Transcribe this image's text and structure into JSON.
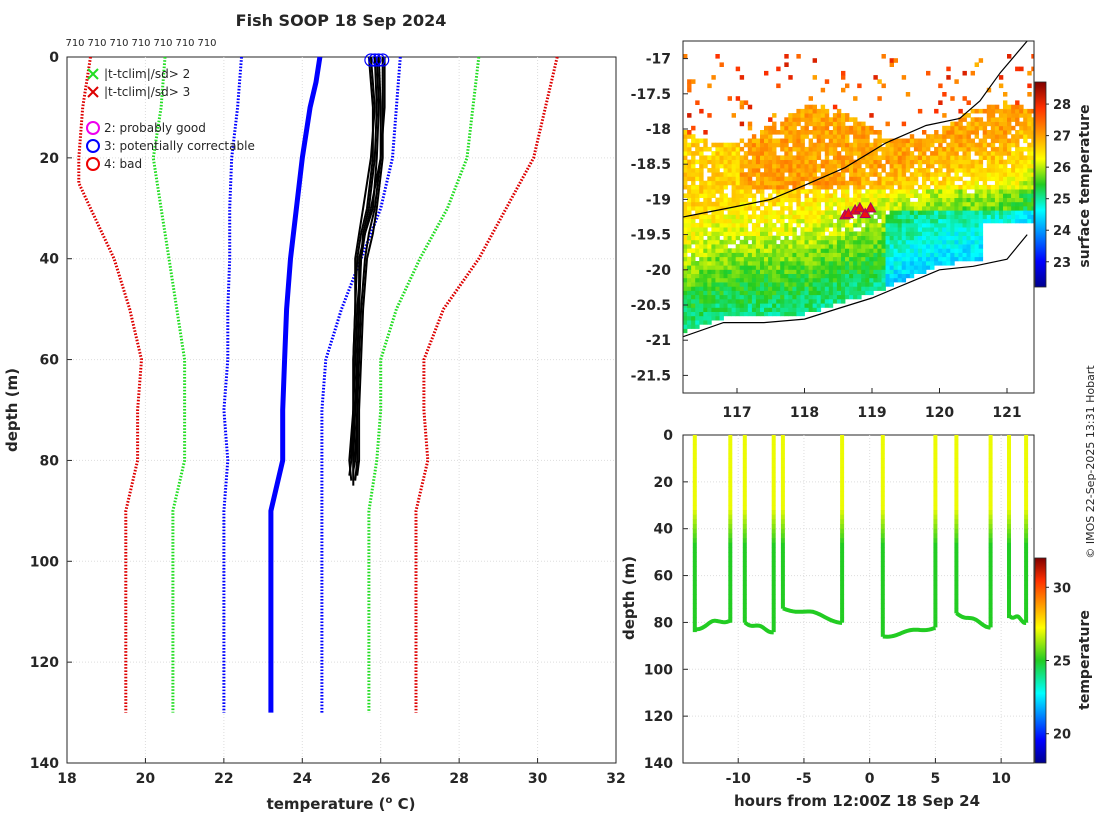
{
  "title": "Fish SOOP 18 Sep 2024",
  "credit": "© IMOS 22-Sep-2025 13:31 Hobart",
  "colors": {
    "clim_mean": "#0000ff",
    "clim_2sd": "#22dd22",
    "clim_3sd": "#dd0000",
    "profile": "#000000",
    "magenta": "#ee00ee",
    "flag_blue": "#0000ff",
    "flag_red": "#ee0000"
  },
  "chart_data": [
    {
      "id": "profiles",
      "type": "line",
      "xlabel": "temperature (",
      "xlabel_sup": "o",
      "xlabel_end": " C)",
      "ylabel": "depth (m)",
      "xlim": [
        18,
        32
      ],
      "ylim": [
        0,
        140
      ],
      "xticks": [
        "18",
        "20",
        "22",
        "24",
        "26",
        "28",
        "30",
        "32"
      ],
      "yticks": [
        "0",
        "20",
        "40",
        "60",
        "80",
        "100",
        "120",
        "140"
      ],
      "top_labels": [
        "710",
        "710",
        "710",
        "710",
        "710",
        "710",
        "710"
      ],
      "legend": [
        {
          "marker": "x",
          "color": "#22dd22",
          "label": "|t-tclim|/sd> 2"
        },
        {
          "marker": "x",
          "color": "#dd0000",
          "label": "|t-tclim|/sd> 3"
        },
        {
          "marker": "o",
          "color": "#ee00ee",
          "label": "2: probably good"
        },
        {
          "marker": "o",
          "color": "#0000ff",
          "label": "3: potentially correctable"
        },
        {
          "marker": "o",
          "color": "#ee0000",
          "label": "4: bad"
        }
      ],
      "series": [
        {
          "name": "clim mean",
          "color": "#0000ff",
          "width": 5,
          "dotted": false,
          "depth": [
            0,
            5,
            10,
            20,
            30,
            40,
            50,
            60,
            70,
            80,
            90,
            130
          ],
          "temp": [
            24.45,
            24.35,
            24.2,
            24.0,
            23.85,
            23.7,
            23.6,
            23.55,
            23.5,
            23.5,
            23.2,
            23.2
          ]
        },
        {
          "name": "mean - 1sd",
          "color": "#0000ff",
          "width": 3,
          "dotted": true,
          "depth": [
            0,
            10,
            20,
            30,
            40,
            50,
            60,
            70,
            80,
            90,
            130
          ],
          "temp": [
            22.45,
            22.35,
            22.2,
            22.15,
            22.15,
            22.1,
            22.1,
            22.0,
            22.1,
            22.0,
            22.0
          ]
        },
        {
          "name": "mean + 1sd",
          "color": "#0000ff",
          "width": 3,
          "dotted": true,
          "depth": [
            0,
            10,
            20,
            30,
            40,
            50,
            60,
            70,
            80,
            90,
            130
          ],
          "temp": [
            26.5,
            26.4,
            26.3,
            26.0,
            25.5,
            25.0,
            24.6,
            24.5,
            24.5,
            24.5,
            24.5
          ]
        },
        {
          "name": "mean - 2sd",
          "color": "#22dd22",
          "width": 3,
          "dotted": true,
          "depth": [
            0,
            10,
            20,
            30,
            40,
            50,
            60,
            70,
            80,
            90,
            130
          ],
          "temp": [
            20.5,
            20.4,
            20.2,
            20.4,
            20.6,
            20.8,
            21.0,
            21.0,
            21.0,
            20.7,
            20.7
          ]
        },
        {
          "name": "mean + 2sd",
          "color": "#22dd22",
          "width": 3,
          "dotted": true,
          "depth": [
            0,
            10,
            20,
            30,
            40,
            50,
            60,
            70,
            80,
            90,
            130
          ],
          "temp": [
            28.5,
            28.35,
            28.2,
            27.7,
            27.0,
            26.4,
            26.0,
            26.0,
            25.9,
            25.7,
            25.7
          ]
        },
        {
          "name": "mean - 3sd",
          "color": "#dd0000",
          "width": 3,
          "dotted": true,
          "depth": [
            0,
            10,
            20,
            25,
            30,
            40,
            50,
            60,
            70,
            80,
            90,
            130
          ],
          "temp": [
            18.6,
            18.4,
            18.3,
            18.3,
            18.6,
            19.2,
            19.6,
            19.9,
            19.8,
            19.8,
            19.5,
            19.5
          ]
        },
        {
          "name": "mean + 3sd",
          "color": "#dd0000",
          "width": 3,
          "dotted": true,
          "depth": [
            0,
            10,
            20,
            30,
            40,
            50,
            60,
            70,
            80,
            90,
            130
          ],
          "temp": [
            30.5,
            30.2,
            29.9,
            29.2,
            28.5,
            27.6,
            27.1,
            27.1,
            27.2,
            26.9,
            26.9
          ]
        }
      ],
      "profiles": [
        {
          "depth": [
            0,
            10,
            20,
            30,
            35,
            40,
            50,
            60,
            70,
            80,
            84
          ],
          "temp": [
            25.7,
            25.8,
            25.8,
            25.65,
            25.5,
            25.4,
            25.35,
            25.3,
            25.3,
            25.2,
            25.25
          ]
        },
        {
          "depth": [
            0,
            10,
            20,
            30,
            35,
            40,
            50,
            60,
            70,
            80,
            85
          ],
          "temp": [
            25.85,
            25.9,
            25.85,
            25.7,
            25.55,
            25.5,
            25.4,
            25.35,
            25.3,
            25.3,
            25.3
          ]
        },
        {
          "depth": [
            0,
            10,
            20,
            30,
            35,
            40,
            50,
            60,
            70,
            80,
            82
          ],
          "temp": [
            25.9,
            25.95,
            25.9,
            25.8,
            25.6,
            25.45,
            25.45,
            25.4,
            25.4,
            25.35,
            25.3
          ]
        },
        {
          "depth": [
            0,
            10,
            20,
            30,
            35,
            40,
            50,
            60,
            70,
            80,
            84
          ],
          "temp": [
            25.95,
            26.0,
            26.0,
            25.85,
            25.7,
            25.6,
            25.5,
            25.45,
            25.4,
            25.4,
            25.35
          ]
        },
        {
          "depth": [
            0,
            10,
            20,
            30,
            35,
            40,
            50,
            60,
            70,
            80,
            83
          ],
          "temp": [
            26.05,
            26.05,
            26.05,
            25.9,
            25.8,
            25.65,
            25.55,
            25.5,
            25.45,
            25.45,
            25.4
          ]
        },
        {
          "depth": [
            0,
            10,
            20,
            30,
            35,
            40,
            50,
            60,
            70,
            80,
            83
          ],
          "temp": [
            25.75,
            25.85,
            25.75,
            25.55,
            25.45,
            25.35,
            25.35,
            25.3,
            25.3,
            25.25,
            25.2
          ]
        },
        {
          "depth": [
            0,
            10,
            20,
            30,
            35,
            40,
            50,
            60,
            70,
            80,
            84
          ],
          "temp": [
            26.1,
            26.1,
            26.0,
            25.75,
            25.6,
            25.5,
            25.45,
            25.4,
            25.35,
            25.3,
            25.3
          ]
        }
      ],
      "flag_circles": [
        {
          "temp": 25.75,
          "depth": 0.6,
          "color": "#0000ff"
        },
        {
          "temp": 25.85,
          "depth": 0.6,
          "color": "#0000ff"
        },
        {
          "temp": 25.95,
          "depth": 0.6,
          "color": "#0000ff"
        },
        {
          "temp": 26.05,
          "depth": 0.6,
          "color": "#0000ff"
        }
      ]
    },
    {
      "id": "sst_map",
      "type": "heatmap",
      "title": "",
      "xlim": [
        116.2,
        121.4
      ],
      "ylim": [
        -21.75,
        -16.75
      ],
      "xticks": [
        "117",
        "118",
        "119",
        "120",
        "121"
      ],
      "xtick_values": [
        117,
        118,
        119,
        120,
        121
      ],
      "yticks": [
        "-17",
        "-17.5",
        "-18",
        "-18.5",
        "-19",
        "-19.5",
        "-20",
        "-20.5",
        "-21",
        "-21.5"
      ],
      "ytick_values": [
        -17,
        -17.5,
        -18,
        -18.5,
        -19,
        -19.5,
        -20,
        -20.5,
        -21,
        -21.5
      ],
      "colorbar_label": "surface temperature",
      "colorbar_ticks": [
        "23",
        "24",
        "25",
        "26",
        "27",
        "28"
      ],
      "colorbar_values": [
        23,
        24,
        25,
        26,
        27,
        28
      ],
      "colorbar_range": [
        22.2,
        28.7
      ],
      "coastline_lon": [
        116.2,
        116.8,
        117.4,
        118.0,
        118.5,
        119.0,
        119.5,
        120.0,
        120.5,
        121.0,
        121.3
      ],
      "coastline_lat": [
        -20.95,
        -20.75,
        -20.75,
        -20.7,
        -20.55,
        -20.4,
        -20.2,
        -20.0,
        -19.95,
        -19.85,
        -19.5
      ],
      "shelf_lon": [
        116.2,
        117.0,
        117.5,
        118.0,
        118.6,
        119.2,
        119.8,
        120.3,
        120.6,
        120.9,
        121.3
      ],
      "shelf_lat": [
        -19.25,
        -19.1,
        -19.0,
        -18.8,
        -18.55,
        -18.2,
        -17.95,
        -17.85,
        -17.6,
        -17.2,
        -16.75
      ],
      "stations_lon": [
        118.6,
        118.65,
        118.75,
        118.82,
        118.9,
        118.98
      ],
      "stations_lat": [
        -19.22,
        -19.2,
        -19.15,
        -19.12,
        -19.2,
        -19.12
      ]
    },
    {
      "id": "time_depth",
      "type": "scatter",
      "xlabel": "hours from 12:00Z 18 Sep 24",
      "ylabel": "depth (m)",
      "xlim": [
        -14.2,
        12.5
      ],
      "ylim": [
        0,
        140
      ],
      "xticks": [
        "-10",
        "-5",
        "0",
        "5",
        "10"
      ],
      "xtick_values": [
        -10,
        -5,
        0,
        5,
        10
      ],
      "yticks": [
        "0",
        "20",
        "40",
        "60",
        "80",
        "100",
        "120",
        "140"
      ],
      "colorbar_label": "temperature",
      "colorbar_ticks": [
        "20",
        "25",
        "30"
      ],
      "colorbar_values": [
        20,
        25,
        30
      ],
      "colorbar_range": [
        18,
        32
      ],
      "casts_start": [
        -13.3,
        -9.5,
        -6.6,
        1.0,
        6.6,
        10.6
      ],
      "casts_end": [
        -10.6,
        -7.3,
        -2.1,
        5.0,
        9.2,
        11.9
      ],
      "casts_floor_start": [
        83,
        80,
        74,
        86,
        76,
        77
      ],
      "casts_floor_end": [
        79,
        84,
        80,
        82,
        82,
        80
      ],
      "casts_floor_mid": [
        80,
        82,
        76,
        84,
        79,
        78
      ]
    }
  ]
}
